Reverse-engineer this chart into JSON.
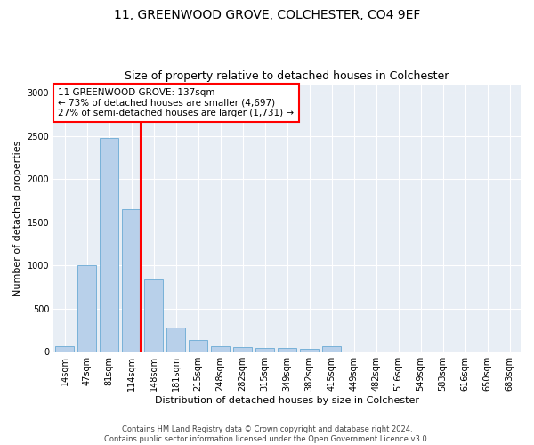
{
  "title1": "11, GREENWOOD GROVE, COLCHESTER, CO4 9EF",
  "title2": "Size of property relative to detached houses in Colchester",
  "xlabel": "Distribution of detached houses by size in Colchester",
  "ylabel": "Number of detached properties",
  "footnote": "Contains HM Land Registry data © Crown copyright and database right 2024.\nContains public sector information licensed under the Open Government Licence v3.0.",
  "bar_labels": [
    "14sqm",
    "47sqm",
    "81sqm",
    "114sqm",
    "148sqm",
    "181sqm",
    "215sqm",
    "248sqm",
    "282sqm",
    "315sqm",
    "349sqm",
    "382sqm",
    "415sqm",
    "449sqm",
    "482sqm",
    "516sqm",
    "549sqm",
    "583sqm",
    "616sqm",
    "650sqm",
    "683sqm"
  ],
  "bar_values": [
    60,
    1000,
    2480,
    1650,
    840,
    280,
    140,
    60,
    55,
    45,
    40,
    30,
    60,
    0,
    0,
    0,
    0,
    0,
    0,
    0,
    0
  ],
  "bar_color": "#b8d0ea",
  "bar_edge_color": "#6aaad4",
  "vline_color": "red",
  "vline_pos": 3.42,
  "annotation_text": "11 GREENWOOD GROVE: 137sqm\n← 73% of detached houses are smaller (4,697)\n27% of semi-detached houses are larger (1,731) →",
  "ylim": [
    0,
    3100
  ],
  "yticks": [
    0,
    500,
    1000,
    1500,
    2000,
    2500,
    3000
  ],
  "background_color": "#e8eef5",
  "grid_color": "white",
  "title1_fontsize": 10,
  "title2_fontsize": 9,
  "xlabel_fontsize": 8,
  "ylabel_fontsize": 8,
  "tick_fontsize": 7,
  "annot_fontsize": 7.5
}
